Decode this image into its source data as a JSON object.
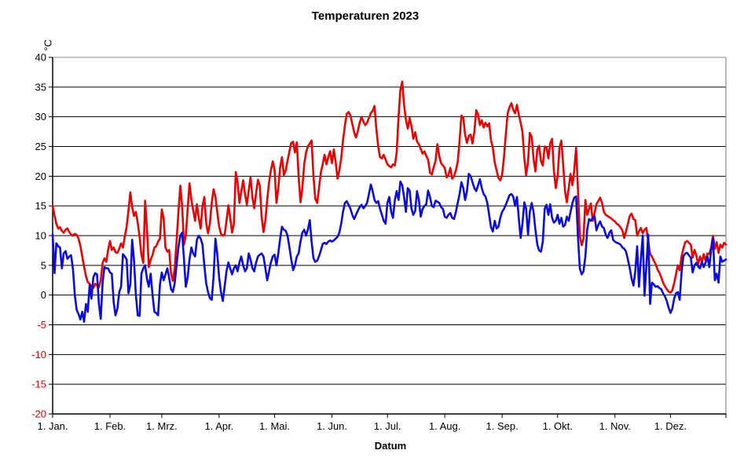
{
  "title": "Temperaturen 2023",
  "chart_data": {
    "type": "line",
    "title": "Temperaturen 2023",
    "xlabel": "Datum",
    "ylabel": "°C",
    "ylim": [
      -20,
      40
    ],
    "y_tick_step": 5,
    "y_ticks": [
      -20,
      -15,
      -10,
      -5,
      0,
      5,
      10,
      15,
      20,
      25,
      30,
      35,
      40
    ],
    "negative_tick_color": "#e60000",
    "positive_tick_color": "#000000",
    "grid": true,
    "legend": "none",
    "plot_border_color": "#8c8c8c",
    "gridline_color": "#000000",
    "x_tick_labels": [
      "1. Jan.",
      "1. Feb.",
      "1. Mrz.",
      "1. Apr.",
      "1. Mai.",
      "1. Jun.",
      "1. Jul.",
      "1. Aug.",
      "1. Sep.",
      "1. Okt.",
      "1. Nov.",
      "1. Dez."
    ],
    "x_tick_day_offsets": [
      0,
      31,
      59,
      90,
      120,
      151,
      181,
      212,
      243,
      273,
      304,
      334
    ],
    "days_in_year": 365,
    "series": [
      {
        "name": "red",
        "color": "#e60000",
        "values": [
          15.0,
          13.4,
          12.0,
          11.2,
          11.4,
          10.8,
          10.5,
          11.0,
          11.2,
          10.6,
          10.2,
          10.0,
          10.3,
          10.1,
          9.5,
          8.3,
          6.5,
          4.8,
          3.2,
          2.2,
          1.9,
          1.4,
          1.2,
          1.9,
          1.6,
          1.3,
          2.5,
          5.4,
          6.2,
          5.6,
          7.6,
          9.1,
          7.6,
          8.0,
          7.2,
          7.1,
          7.8,
          8.7,
          8.0,
          9.8,
          11.5,
          14.2,
          17.3,
          14.8,
          13.3,
          14.0,
          12.2,
          9.8,
          6.8,
          5.4,
          15.9,
          11.1,
          4.7,
          6.0,
          6.7,
          8.0,
          8.2,
          9.0,
          9.5,
          14.4,
          12.9,
          8.0,
          7.3,
          7.6,
          3.6,
          2.4,
          4.5,
          9.0,
          14.0,
          18.4,
          15.0,
          8.5,
          10.0,
          14.5,
          18.8,
          16.0,
          14.3,
          12.5,
          15.3,
          13.0,
          11.2,
          15.0,
          16.5,
          12.2,
          10.4,
          12.0,
          15.5,
          17.8,
          16.5,
          14.0,
          11.5,
          10.3,
          10.0,
          10.2,
          12.5,
          15.1,
          13.0,
          10.5,
          12.0,
          20.7,
          19.0,
          15.5,
          17.4,
          19.3,
          17.0,
          15.2,
          17.6,
          19.8,
          16.4,
          14.6,
          17.2,
          19.4,
          18.4,
          13.2,
          10.6,
          12.6,
          16.0,
          19.0,
          21.0,
          22.5,
          21.0,
          15.5,
          18.0,
          21.5,
          23.2,
          20.2,
          21.0,
          22.6,
          24.2,
          25.6,
          25.8,
          24.0,
          25.7,
          20.0,
          15.6,
          18.0,
          22.0,
          24.0,
          25.0,
          25.5,
          26.0,
          20.0,
          16.2,
          15.5,
          18.0,
          20.6,
          22.0,
          23.6,
          22.0,
          23.2,
          24.2,
          22.2,
          24.5,
          22.4,
          19.6,
          21.0,
          23.0,
          26.0,
          28.5,
          30.5,
          30.8,
          30.2,
          28.8,
          27.4,
          26.5,
          27.6,
          29.0,
          30.0,
          29.2,
          28.6,
          29.0,
          29.8,
          30.6,
          31.0,
          31.8,
          28.0,
          25.0,
          23.2,
          23.0,
          23.6,
          22.8,
          22.0,
          21.7,
          21.5,
          22.0,
          21.8,
          24.0,
          30.0,
          34.5,
          35.9,
          32.0,
          29.5,
          28.0,
          29.8,
          28.4,
          26.3,
          27.4,
          25.8,
          25.4,
          24.6,
          23.8,
          24.2,
          23.4,
          22.8,
          20.6,
          20.3,
          21.5,
          22.6,
          25.4,
          23.4,
          22.2,
          21.8,
          21.4,
          19.8,
          20.2,
          21.4,
          19.6,
          20.0,
          21.0,
          22.4,
          26.0,
          30.2,
          29.8,
          27.0,
          25.6,
          26.8,
          27.0,
          25.5,
          27.5,
          31.1,
          30.4,
          28.6,
          29.4,
          28.2,
          29.0,
          28.4,
          28.9,
          26.0,
          24.8,
          22.3,
          21.0,
          19.7,
          19.3,
          20.2,
          23.2,
          27.0,
          30.6,
          31.6,
          32.3,
          31.2,
          30.6,
          32.0,
          30.4,
          29.0,
          27.5,
          23.0,
          20.2,
          22.4,
          27.3,
          26.6,
          23.0,
          20.8,
          24.5,
          25.1,
          22.5,
          21.8,
          25.0,
          24.8,
          23.0,
          25.5,
          26.3,
          21.0,
          18.0,
          20.0,
          24.8,
          26.0,
          22.0,
          17.5,
          15.6,
          18.0,
          20.4,
          18.5,
          21.0,
          24.8,
          18.0,
          10.0,
          8.4,
          9.5,
          16.0,
          13.5,
          14.5,
          15.4,
          12.5,
          13.8,
          15.3,
          15.8,
          16.4,
          15.5,
          14.0,
          13.5,
          13.3,
          13.1,
          12.9,
          12.6,
          12.4,
          12.0,
          11.8,
          11.4,
          10.9,
          9.6,
          10.8,
          12.0,
          13.3,
          13.7,
          12.8,
          12.6,
          10.0,
          10.7,
          11.3,
          10.4,
          11.0,
          11.3,
          9.0,
          6.9,
          6.5,
          5.8,
          5.2,
          4.3,
          3.8,
          3.0,
          2.1,
          1.5,
          1.0,
          0.6,
          0.4,
          0.8,
          2.0,
          3.5,
          5.0,
          4.2,
          6.5,
          7.8,
          8.9,
          9.1,
          8.8,
          8.5,
          6.3,
          7.6,
          6.7,
          5.2,
          6.5,
          5.6,
          6.9,
          5.8,
          7.0,
          6.9,
          8.0,
          10.0,
          7.8,
          8.9,
          7.1,
          8.5,
          8.0,
          8.8,
          8.5
        ]
      },
      {
        "name": "blue",
        "color": "#0b0bdb",
        "values": [
          10.2,
          3.7,
          8.7,
          8.2,
          8.0,
          4.5,
          7.0,
          7.4,
          6.1,
          6.5,
          6.7,
          4.3,
          -0.1,
          -2.5,
          -3.2,
          -4.1,
          -2.8,
          -4.5,
          -1.5,
          -2.8,
          1.7,
          -0.6,
          3.0,
          3.7,
          3.5,
          -1.5,
          -4.0,
          2.0,
          4.7,
          4.5,
          4.5,
          3.8,
          3.6,
          -1.2,
          -3.4,
          -2.3,
          0.5,
          1.4,
          6.9,
          6.5,
          6.0,
          0.3,
          1.8,
          9.3,
          5.8,
          0.1,
          -3.4,
          -3.5,
          3.6,
          4.5,
          5.0,
          2.7,
          1.4,
          3.6,
          0.1,
          -2.8,
          -3.0,
          -3.4,
          1.8,
          3.8,
          2.5,
          3.5,
          4.5,
          2.9,
          1.0,
          0.5,
          2.0,
          5.0,
          8.0,
          10.0,
          10.5,
          6.0,
          1.4,
          3.0,
          6.0,
          8.0,
          7.0,
          6.5,
          9.3,
          10.0,
          9.5,
          8.5,
          5.0,
          2.0,
          0.5,
          -0.5,
          -0.8,
          3.0,
          9.5,
          7.0,
          3.0,
          0.5,
          -1.0,
          1.5,
          4.0,
          5.5,
          4.5,
          3.5,
          4.5,
          5.0,
          4.0,
          5.5,
          6.5,
          5.0,
          4.0,
          4.5,
          7.0,
          6.0,
          4.5,
          4.0,
          5.5,
          6.5,
          6.8,
          7.0,
          6.5,
          4.5,
          2.5,
          4.0,
          5.5,
          6.5,
          6.8,
          5.0,
          7.0,
          9.5,
          11.5,
          11.0,
          10.8,
          10.0,
          8.0,
          6.0,
          4.2,
          5.0,
          6.5,
          7.0,
          9.0,
          10.5,
          11.0,
          10.0,
          11.0,
          12.6,
          9.0,
          6.2,
          5.6,
          5.8,
          6.5,
          7.5,
          8.6,
          8.8,
          8.6,
          9.0,
          9.2,
          9.0,
          9.2,
          9.5,
          9.8,
          10.5,
          12.0,
          14.0,
          15.5,
          15.8,
          15.2,
          14.5,
          13.5,
          12.8,
          13.5,
          14.2,
          14.8,
          15.2,
          14.6,
          15.0,
          15.5,
          17.0,
          18.6,
          17.5,
          16.0,
          15.5,
          15.8,
          14.5,
          13.5,
          12.5,
          12.0,
          15.5,
          16.5,
          14.0,
          13.0,
          16.0,
          17.5,
          16.0,
          19.1,
          18.5,
          16.5,
          14.0,
          18.0,
          17.6,
          14.5,
          13.5,
          14.2,
          17.5,
          16.0,
          13.2,
          14.5,
          15.0,
          15.3,
          17.6,
          16.5,
          15.0,
          14.8,
          15.9,
          15.7,
          15.5,
          14.8,
          14.5,
          13.2,
          13.0,
          13.5,
          13.8,
          13.0,
          12.8,
          14.0,
          15.5,
          17.0,
          19.0,
          18.0,
          16.0,
          17.5,
          20.4,
          20.0,
          19.0,
          18.0,
          17.5,
          18.5,
          19.5,
          18.0,
          17.0,
          16.6,
          15.5,
          13.5,
          11.4,
          10.7,
          12.5,
          11.2,
          11.5,
          13.0,
          14.0,
          14.5,
          15.2,
          16.0,
          16.8,
          17.0,
          16.6,
          15.0,
          16.5,
          13.0,
          9.6,
          12.0,
          15.6,
          14.5,
          10.2,
          14.0,
          15.5,
          14.0,
          11.0,
          8.5,
          7.5,
          7.3,
          9.0,
          14.5,
          15.2,
          13.5,
          15.3,
          13.0,
          12.2,
          12.5,
          13.5,
          12.0,
          13.0,
          11.5,
          11.8,
          13.2,
          12.5,
          14.0,
          15.5,
          16.4,
          16.6,
          10.0,
          4.5,
          3.5,
          4.0,
          6.5,
          11.0,
          12.8,
          12.5,
          13.0,
          13.3,
          10.9,
          11.8,
          12.4,
          11.5,
          11.3,
          10.2,
          9.6,
          10.5,
          10.9,
          9.3,
          9.0,
          8.8,
          8.7,
          8.5,
          8.0,
          7.8,
          7.3,
          6.0,
          4.5,
          2.8,
          1.6,
          4.0,
          8.2,
          1.4,
          6.0,
          10.0,
          -0.1,
          5.0,
          10.2,
          -1.5,
          2.1,
          1.8,
          1.4,
          1.5,
          1.2,
          1.0,
          0.3,
          -0.2,
          -1.0,
          -2.1,
          -3.0,
          -2.3,
          -0.6,
          0.3,
          0.5,
          -0.8,
          3.8,
          6.5,
          7.0,
          7.1,
          6.7,
          6.3,
          3.8,
          5.0,
          5.4,
          4.8,
          4.5,
          5.6,
          4.7,
          5.5,
          6.5,
          4.7,
          7.5,
          9.6,
          2.5,
          3.6,
          2.1,
          6.5,
          5.6,
          5.8,
          6.0
        ]
      }
    ]
  }
}
